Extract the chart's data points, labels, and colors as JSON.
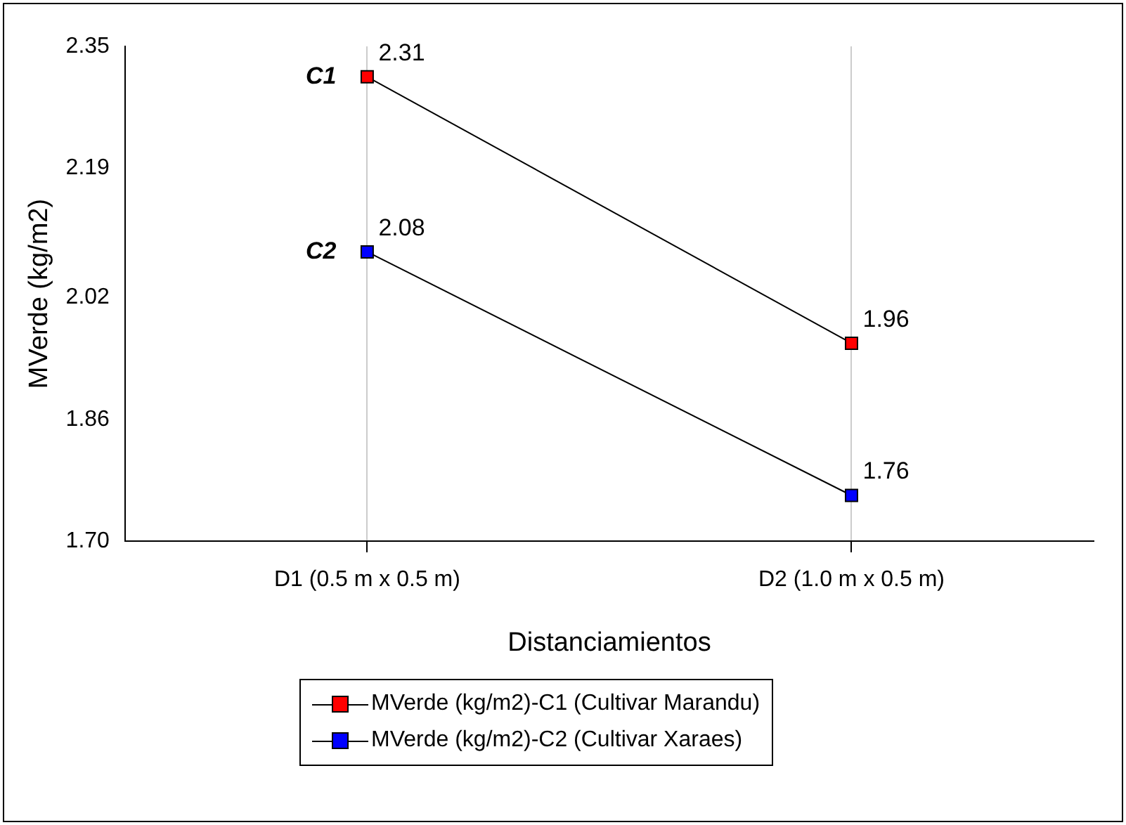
{
  "chart_data": {
    "type": "line",
    "xlabel": "Distanciamientos",
    "ylabel": "MVerde (kg/m2)",
    "categories": [
      "D1 (0.5 m x 0.5 m)",
      "D2 (1.0 m x 0.5 m)"
    ],
    "series": [
      {
        "name": "MVerde (kg/m2)-C1 (Cultivar Marandu)",
        "color": "#ff0000",
        "values": [
          2.31,
          1.96
        ]
      },
      {
        "name": "MVerde (kg/m2)-C2 (Cultivar Xaraes)",
        "color": "#0000ff",
        "values": [
          2.08,
          1.76
        ]
      }
    ],
    "ylim": [
      1.7,
      2.35
    ],
    "yticks": [
      {
        "value": 1.7,
        "label": "1.70"
      },
      1.86,
      2.02,
      2.19,
      2.35
    ],
    "grid": "x",
    "legend": "bottom",
    "marker": "square",
    "line_style": "solid",
    "data_labels": true,
    "annotations": [
      {
        "text": "C1",
        "x": "D1 (0.5 m x 0.5 m)",
        "y": 2.31
      },
      {
        "text": "C2",
        "x": "D1 (0.5 m x 0.5 m)",
        "y": 2.08
      }
    ]
  }
}
